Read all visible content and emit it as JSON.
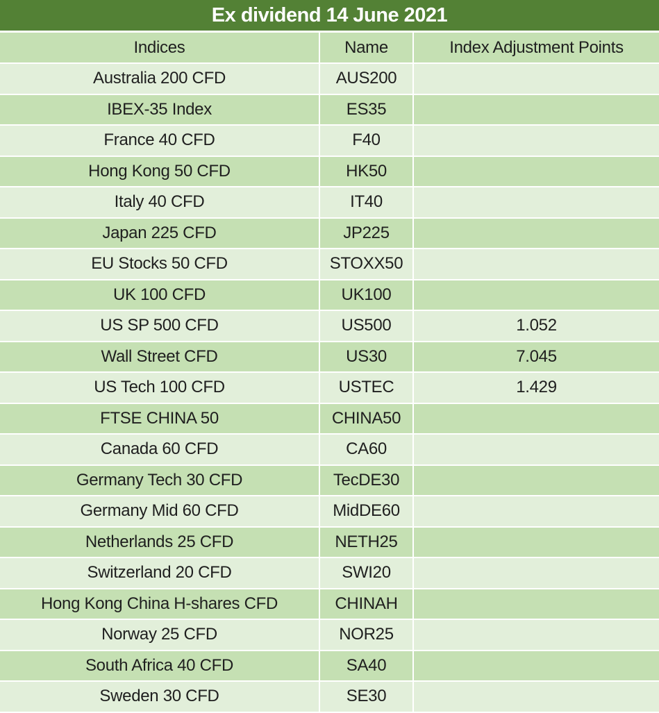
{
  "title": "Ex dividend 14 June 2021",
  "table": {
    "columns": [
      "Indices",
      "Name",
      "Index Adjustment Points"
    ],
    "rows": [
      [
        "Australia 200 CFD",
        "AUS200",
        ""
      ],
      [
        "IBEX-35 Index",
        "ES35",
        ""
      ],
      [
        "France 40 CFD",
        "F40",
        ""
      ],
      [
        "Hong Kong 50 CFD",
        "HK50",
        ""
      ],
      [
        "Italy 40 CFD",
        "IT40",
        ""
      ],
      [
        "Japan 225 CFD",
        "JP225",
        ""
      ],
      [
        "EU Stocks 50 CFD",
        "STOXX50",
        ""
      ],
      [
        "UK 100 CFD",
        "UK100",
        ""
      ],
      [
        "US SP 500 CFD",
        "US500",
        "1.052"
      ],
      [
        "Wall Street CFD",
        "US30",
        "7.045"
      ],
      [
        "US Tech 100 CFD",
        "USTEC",
        "1.429"
      ],
      [
        "FTSE CHINA 50",
        "CHINA50",
        ""
      ],
      [
        "Canada 60 CFD",
        "CA60",
        ""
      ],
      [
        "Germany Tech 30 CFD",
        "TecDE30",
        ""
      ],
      [
        "Germany Mid 60 CFD",
        "MidDE60",
        ""
      ],
      [
        "Netherlands 25 CFD",
        "NETH25",
        ""
      ],
      [
        "Switzerland 20 CFD",
        "SWI20",
        ""
      ],
      [
        "Hong Kong China H-shares CFD",
        "CHINAH",
        ""
      ],
      [
        "Norway 25 CFD",
        "NOR25",
        ""
      ],
      [
        "South Africa 40 CFD",
        "SA40",
        ""
      ],
      [
        "Sweden 30 CFD",
        "SE30",
        ""
      ]
    ]
  },
  "colors": {
    "title_bg": "#538135",
    "title_text": "#ffffff",
    "header_bg": "#c5e0b3",
    "row_light": "#e2efda",
    "row_dark": "#c5e0b3",
    "grid": "#ffffff",
    "text": "#1f1f1f"
  }
}
